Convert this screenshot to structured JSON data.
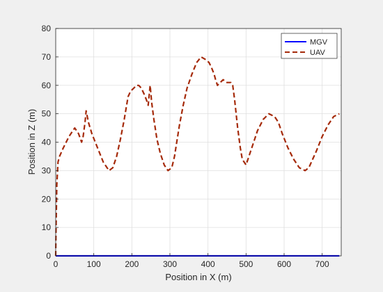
{
  "chart_data": {
    "type": "line",
    "title": "",
    "xlabel": "Position in X (m)",
    "ylabel": "Position in Z (m)",
    "xlim": [
      0,
      750
    ],
    "ylim": [
      0,
      80
    ],
    "xticks": [
      0,
      100,
      200,
      300,
      400,
      500,
      600,
      700
    ],
    "yticks": [
      0,
      10,
      20,
      30,
      40,
      50,
      60,
      70,
      80
    ],
    "grid": true,
    "legend_position": "top-right",
    "series": [
      {
        "name": "MGV",
        "style": "solid",
        "color": "#0000ff",
        "x": [
          0,
          745
        ],
        "y": [
          0,
          0
        ]
      },
      {
        "name": "UAV",
        "style": "dashed",
        "color": "#a52a0a",
        "x": [
          0,
          1,
          3,
          6,
          10,
          20,
          35,
          50,
          60,
          68,
          72,
          77,
          80,
          86,
          95,
          110,
          125,
          140,
          150,
          160,
          170,
          180,
          190,
          197,
          205,
          212,
          218,
          225,
          232,
          238,
          243,
          248,
          252,
          258,
          266,
          275,
          285,
          295,
          305,
          312,
          318,
          325,
          335,
          345,
          358,
          370,
          382,
          395,
          403,
          410,
          416,
          420,
          425,
          432,
          440,
          450,
          460,
          465,
          470,
          478,
          485,
          490,
          495,
          500,
          505,
          510,
          520,
          530,
          545,
          560,
          575,
          585,
          595,
          610,
          625,
          640,
          655,
          665,
          675,
          685,
          700,
          715,
          730,
          745
        ],
        "y": [
          0,
          10,
          25,
          33,
          35,
          38,
          42,
          45,
          43,
          40,
          42,
          47,
          51,
          47,
          43,
          38,
          33,
          30,
          31,
          35,
          41,
          48,
          56,
          58,
          59,
          60,
          60,
          59,
          57,
          55,
          53,
          60,
          54,
          48,
          41,
          36,
          32,
          30,
          31,
          35,
          40,
          46,
          53,
          59,
          64,
          68,
          70,
          69,
          68,
          66,
          64,
          62,
          60,
          61,
          62,
          61,
          61,
          60,
          55,
          45,
          38,
          34,
          33,
          32,
          34,
          36,
          40,
          44,
          48,
          50,
          49,
          47,
          43,
          38,
          34,
          31,
          30,
          31,
          34,
          37,
          42,
          46,
          49,
          50
        ]
      }
    ]
  }
}
